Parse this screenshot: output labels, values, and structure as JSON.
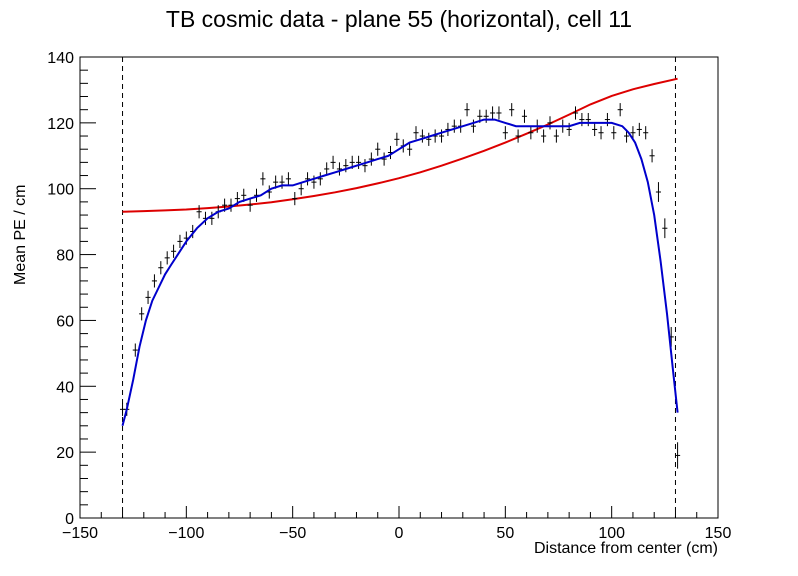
{
  "chart_data": {
    "type": "scatter",
    "title": "TB cosmic data - plane 55 (horizontal), cell 11",
    "xlabel": "Distance from center (cm)",
    "ylabel": "Mean PE / cm",
    "xlim": [
      -150,
      150
    ],
    "ylim": [
      0,
      140
    ],
    "x_ticks": [
      -150,
      -100,
      -50,
      0,
      50,
      100,
      150
    ],
    "x_tick_labels": [
      "−150",
      "−100",
      "−50",
      "0",
      "50",
      "100",
      "150"
    ],
    "y_ticks": [
      0,
      20,
      40,
      60,
      80,
      100,
      120,
      140
    ],
    "y_tick_labels": [
      "0",
      "20",
      "40",
      "60",
      "80",
      "100",
      "120",
      "140"
    ],
    "grid": false,
    "vertical_lines": [
      -130,
      130
    ],
    "colors": {
      "data": "#000000",
      "fit_blue": "#0000cc",
      "fit_red": "#dd0000",
      "vline": "#000000"
    },
    "series": [
      {
        "kind": "points_with_errors",
        "x": [
          -130,
          -128,
          -124,
          -121,
          -118,
          -115,
          -112,
          -109,
          -106,
          -103,
          -100,
          -97,
          -94,
          -91,
          -88,
          -85,
          -82,
          -79,
          -76,
          -73,
          -70,
          -67,
          -64,
          -61,
          -58,
          -55,
          -52,
          -49,
          -46,
          -43,
          -40,
          -37,
          -34,
          -31,
          -28,
          -25,
          -22,
          -19,
          -16,
          -13,
          -10,
          -7,
          -4,
          -1,
          2,
          5,
          8,
          11,
          14,
          17,
          20,
          23,
          26,
          29,
          32,
          35,
          38,
          41,
          44,
          47,
          50,
          53,
          56,
          59,
          62,
          65,
          68,
          71,
          74,
          77,
          80,
          83,
          86,
          89,
          92,
          95,
          98,
          101,
          104,
          107,
          110,
          113,
          116,
          119,
          122,
          125,
          128,
          131
        ],
        "y": [
          33,
          33,
          51,
          62,
          67,
          72,
          76,
          79,
          81,
          84,
          85,
          87,
          93,
          91,
          91,
          93,
          95,
          95,
          97,
          98,
          95,
          98,
          103,
          99,
          102,
          102,
          103,
          97,
          100,
          103,
          102,
          103,
          106,
          108,
          106,
          107,
          108,
          108,
          107,
          109,
          112,
          109,
          111,
          115,
          113,
          112,
          117,
          116,
          115,
          116,
          116,
          118,
          119,
          119,
          124,
          119,
          122,
          122,
          123,
          123,
          117,
          124,
          116,
          122,
          117,
          119,
          116,
          120,
          116,
          119,
          118,
          123,
          121,
          121,
          118,
          117,
          121,
          117,
          124,
          116,
          117,
          118,
          117,
          110,
          99,
          88,
          55,
          19
        ],
        "yerr": [
          2,
          2,
          2,
          2,
          2,
          2,
          2,
          2,
          2,
          2,
          2,
          2,
          2,
          2,
          2,
          2,
          2,
          2,
          2,
          2,
          2,
          2,
          2,
          2,
          2,
          2,
          2,
          2,
          2,
          2,
          2,
          2,
          2,
          2,
          2,
          2,
          2,
          2,
          2,
          2,
          2,
          2,
          2,
          2,
          2,
          2,
          2,
          2,
          2,
          2,
          2,
          2,
          2,
          2,
          2,
          2,
          2,
          2,
          2,
          2,
          2,
          2,
          2,
          2,
          2,
          2,
          2,
          2,
          2,
          2,
          2,
          2,
          2,
          2,
          2,
          2,
          2,
          2,
          2,
          2,
          2,
          2,
          2,
          2,
          3,
          3,
          3,
          4
        ],
        "xerr": 1.2
      },
      {
        "kind": "line",
        "x": [
          -130,
          -128,
          -125,
          -122,
          -119,
          -116,
          -113,
          -110,
          -107,
          -104,
          -100,
          -95,
          -90,
          -85,
          -80,
          -75,
          -70,
          -65,
          -60,
          -55,
          -50,
          -45,
          -40,
          -35,
          -30,
          -25,
          -20,
          -15,
          -10,
          -5,
          0,
          5,
          10,
          15,
          20,
          25,
          30,
          35,
          40,
          45,
          50,
          55,
          60,
          65,
          70,
          75,
          80,
          85,
          90,
          95,
          100,
          105,
          108,
          111,
          114,
          117,
          120,
          123,
          126,
          129,
          131
        ],
        "y": [
          28,
          33,
          42,
          52,
          60,
          66,
          70,
          74,
          77,
          80,
          84,
          88,
          91,
          93,
          94,
          96,
          97,
          98,
          100,
          101,
          101,
          102,
          103,
          104,
          105,
          106,
          107,
          108,
          109,
          110,
          112,
          114,
          115,
          116,
          117,
          118,
          119,
          120,
          121,
          121,
          120,
          119,
          119,
          119,
          119,
          119,
          119,
          120,
          120,
          120,
          120,
          119,
          117,
          114,
          109,
          102,
          92,
          78,
          62,
          44,
          32
        ]
      },
      {
        "kind": "line",
        "x": [
          -130,
          -120,
          -110,
          -100,
          -90,
          -80,
          -70,
          -60,
          -50,
          -40,
          -30,
          -20,
          -10,
          0,
          10,
          20,
          30,
          40,
          50,
          60,
          70,
          80,
          90,
          100,
          110,
          120,
          131
        ],
        "y": [
          93.0,
          93.2,
          93.4,
          93.7,
          94.1,
          94.6,
          95.2,
          95.9,
          96.8,
          97.8,
          98.9,
          100.2,
          101.6,
          103.2,
          105.0,
          107.0,
          109.2,
          111.5,
          114.0,
          116.7,
          119.5,
          122.5,
          125.6,
          128.2,
          130.2,
          131.8,
          133.4
        ]
      }
    ]
  }
}
